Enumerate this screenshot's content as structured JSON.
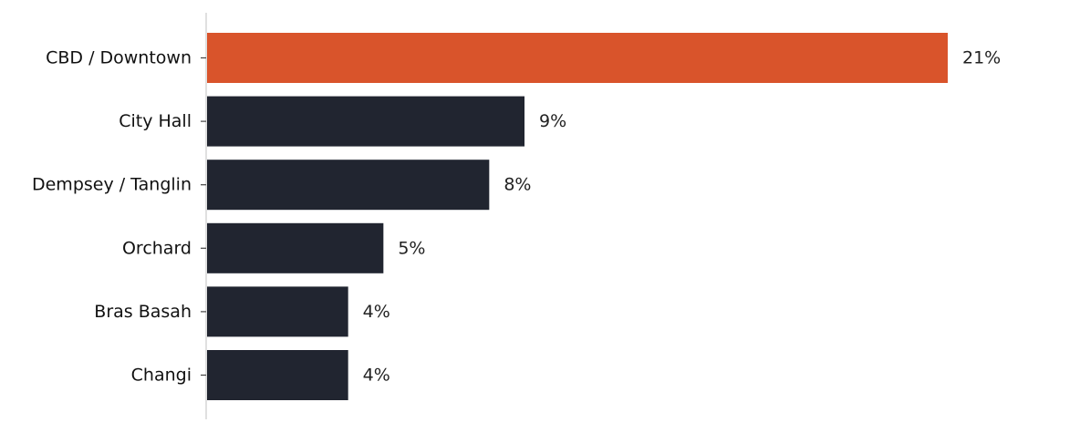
{
  "chart_data": {
    "type": "bar",
    "orientation": "horizontal",
    "categories": [
      "CBD / Downtown",
      "City Hall",
      "Dempsey / Tanglin",
      "Orchard",
      "Bras Basah",
      "Changi"
    ],
    "values": [
      21,
      9,
      8,
      5,
      4,
      4
    ],
    "value_labels": [
      "21%",
      "9%",
      "8%",
      "5%",
      "4%",
      "4%"
    ],
    "unit": "%",
    "title": "",
    "xlabel": "",
    "ylabel": "",
    "xlim": [
      0,
      24.5
    ],
    "grid": false,
    "legend": "none",
    "highlight_index": 0,
    "colors": {
      "highlight": "#d9542b",
      "default": "#212530",
      "axis": "#cccccc",
      "tick": "#444444"
    }
  }
}
